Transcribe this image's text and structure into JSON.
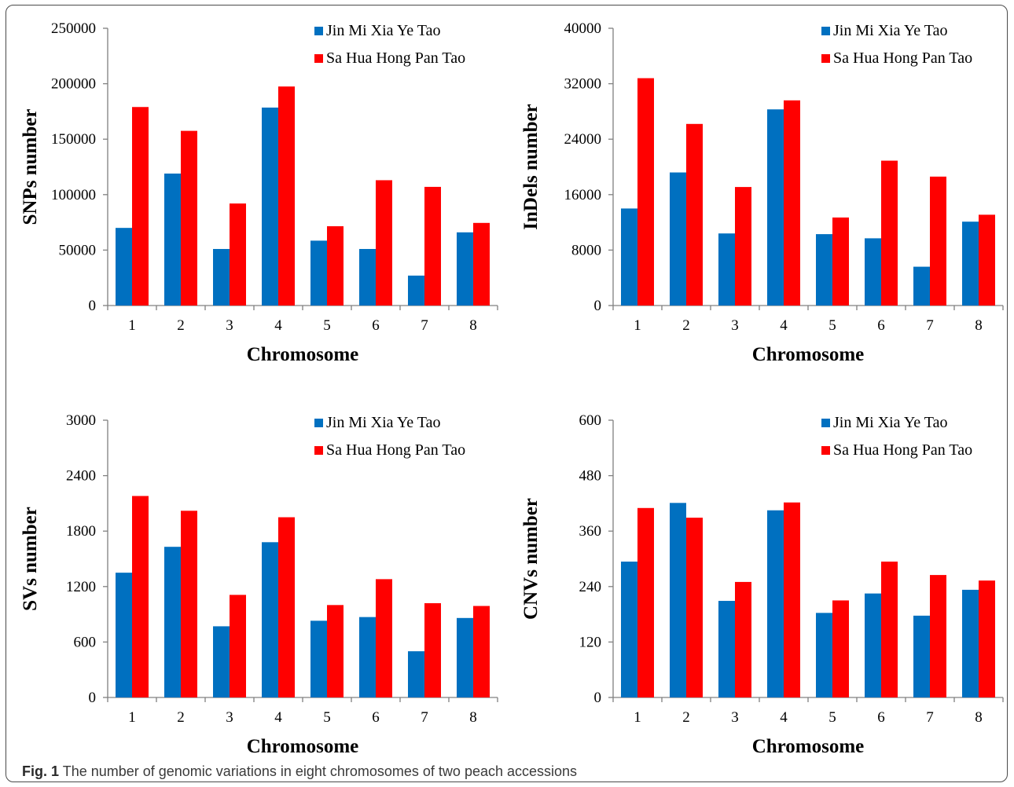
{
  "caption": {
    "label": "Fig. 1",
    "text": "The number of genomic variations in eight chromosomes of two peach accessions"
  },
  "colors": {
    "series1": "#0070C0",
    "series2": "#FF0000"
  },
  "chart_data": [
    {
      "type": "bar",
      "xlabel": "Chromosome",
      "ylabel": "SNPs number",
      "categories": [
        "1",
        "2",
        "3",
        "4",
        "5",
        "6",
        "7",
        "8"
      ],
      "ylim": [
        0,
        250000
      ],
      "yticks": [
        "0",
        "50000",
        "100000",
        "150000",
        "200000",
        "250000"
      ],
      "legend_position": "top-right",
      "series": [
        {
          "name": "Jin Mi Xia Ye Tao",
          "values": [
            70000,
            119000,
            51000,
            178500,
            58500,
            51000,
            27000,
            66000
          ]
        },
        {
          "name": "Sa Hua Hong Pan Tao",
          "values": [
            179000,
            157500,
            92000,
            197500,
            71500,
            113000,
            107000,
            74500
          ]
        }
      ]
    },
    {
      "type": "bar",
      "xlabel": "Chromosome",
      "ylabel": "InDels number",
      "categories": [
        "1",
        "2",
        "3",
        "4",
        "5",
        "6",
        "7",
        "8"
      ],
      "ylim": [
        0,
        40000
      ],
      "yticks": [
        "0",
        "8000",
        "16000",
        "24000",
        "32000",
        "40000"
      ],
      "legend_position": "top-right",
      "series": [
        {
          "name": "Jin Mi Xia Ye Tao",
          "values": [
            14000,
            19200,
            10400,
            28300,
            10300,
            9700,
            5600,
            12100
          ]
        },
        {
          "name": "Sa Hua Hong Pan Tao",
          "values": [
            32800,
            26200,
            17100,
            29600,
            12700,
            20900,
            18600,
            13100
          ]
        }
      ]
    },
    {
      "type": "bar",
      "xlabel": "Chromosome",
      "ylabel": "SVs number",
      "categories": [
        "1",
        "2",
        "3",
        "4",
        "5",
        "6",
        "7",
        "8"
      ],
      "ylim": [
        0,
        3000
      ],
      "yticks": [
        "0",
        "600",
        "1200",
        "1800",
        "2400",
        "3000"
      ],
      "legend_position": "top-right",
      "series": [
        {
          "name": "Jin Mi Xia Ye Tao",
          "values": [
            1350,
            1630,
            770,
            1680,
            830,
            870,
            500,
            860
          ]
        },
        {
          "name": "Sa Hua Hong Pan Tao",
          "values": [
            2180,
            2020,
            1110,
            1950,
            1000,
            1280,
            1020,
            990
          ]
        }
      ]
    },
    {
      "type": "bar",
      "xlabel": "Chromosome",
      "ylabel": "CNVs number",
      "categories": [
        "1",
        "2",
        "3",
        "4",
        "5",
        "6",
        "7",
        "8"
      ],
      "ylim": [
        0,
        600
      ],
      "yticks": [
        "0",
        "120",
        "240",
        "360",
        "480",
        "600"
      ],
      "legend_position": "top-right",
      "series": [
        {
          "name": "Jin Mi Xia Ye Tao",
          "values": [
            294,
            421,
            209,
            405,
            183,
            225,
            177,
            233
          ]
        },
        {
          "name": "Sa Hua Hong Pan Tao",
          "values": [
            410,
            389,
            250,
            422,
            210,
            294,
            265,
            253
          ]
        }
      ]
    }
  ]
}
